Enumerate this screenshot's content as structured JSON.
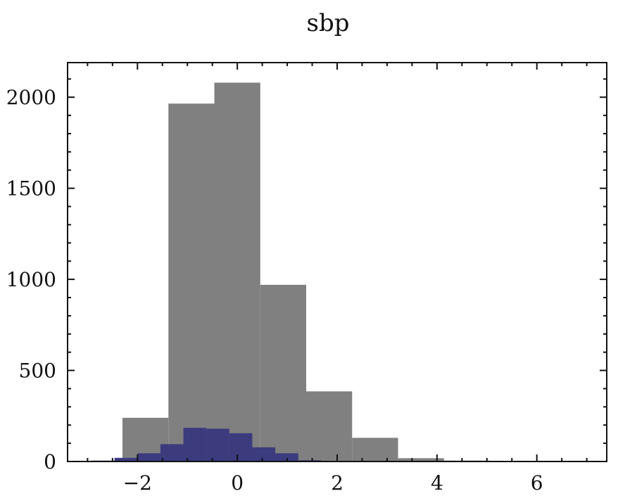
{
  "chart_data": {
    "type": "bar",
    "title": "sbp",
    "xlabel": "",
    "ylabel": "",
    "xlim": [
      -3.4,
      7.4
    ],
    "ylim": [
      0,
      2190
    ],
    "grid": false,
    "legend": "none",
    "x_ticks": [
      -2,
      0,
      2,
      4,
      6
    ],
    "x_tick_labels": [
      "−2",
      "0",
      "2",
      "4",
      "6"
    ],
    "y_ticks": [
      0,
      500,
      1000,
      1500,
      2000
    ],
    "y_tick_labels": [
      "0",
      "500",
      "1000",
      "1500",
      "2000"
    ],
    "series": [
      {
        "color": "#808080",
        "bins": [
          {
            "x0": -2.3,
            "x1": -1.38,
            "value": 240
          },
          {
            "x0": -1.38,
            "x1": -0.46,
            "value": 1965
          },
          {
            "x0": -0.46,
            "x1": 0.46,
            "value": 2080
          },
          {
            "x0": 0.46,
            "x1": 1.38,
            "value": 970
          },
          {
            "x0": 1.38,
            "x1": 2.3,
            "value": 385
          },
          {
            "x0": 2.3,
            "x1": 3.22,
            "value": 130
          },
          {
            "x0": 3.22,
            "x1": 4.14,
            "value": 18
          },
          {
            "x0": 4.14,
            "x1": 5.06,
            "value": 5
          },
          {
            "x0": 5.06,
            "x1": 5.98,
            "value": 3
          },
          {
            "x0": 5.98,
            "x1": 6.9,
            "value": 2
          }
        ]
      },
      {
        "color": "#3b3b7e",
        "bins": [
          {
            "x0": -2.92,
            "x1": -2.46,
            "value": 5
          },
          {
            "x0": -2.46,
            "x1": -2.0,
            "value": 20
          },
          {
            "x0": -2.0,
            "x1": -1.54,
            "value": 45
          },
          {
            "x0": -1.54,
            "x1": -1.08,
            "value": 95
          },
          {
            "x0": -1.08,
            "x1": -0.62,
            "value": 185
          },
          {
            "x0": -0.62,
            "x1": -0.16,
            "value": 180
          },
          {
            "x0": -0.16,
            "x1": 0.3,
            "value": 155
          },
          {
            "x0": 0.3,
            "x1": 0.76,
            "value": 78
          },
          {
            "x0": 0.76,
            "x1": 1.22,
            "value": 45
          },
          {
            "x0": 1.22,
            "x1": 1.68,
            "value": 7
          }
        ]
      }
    ]
  }
}
